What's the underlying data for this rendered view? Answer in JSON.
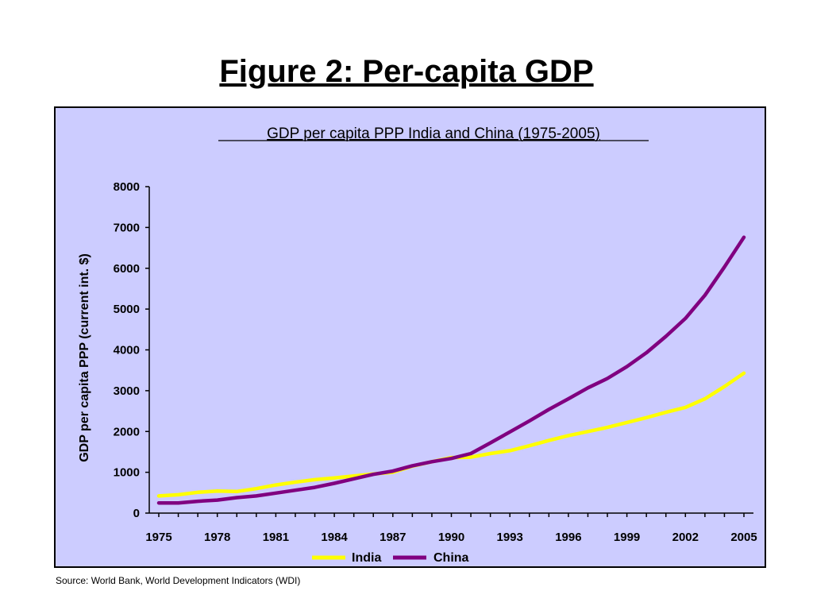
{
  "slide": {
    "title": "Figure 2: Per-capita GDP",
    "source": "Source: World Bank, World Development Indicators (WDI)"
  },
  "chart_data": {
    "type": "line",
    "title": "GDP per capita PPP India and China (1975-2005)",
    "xlabel": "",
    "ylabel": "GDP per capita PPP (current int. $)",
    "ylim": [
      0,
      8000
    ],
    "yticks": [
      0,
      1000,
      2000,
      3000,
      4000,
      5000,
      6000,
      7000,
      8000
    ],
    "xlim": [
      1975,
      2005
    ],
    "xticks": [
      1975,
      1978,
      1981,
      1984,
      1987,
      1990,
      1993,
      1996,
      1999,
      2002,
      2005
    ],
    "grid": false,
    "legend_position": "bottom",
    "background": "#ccccff",
    "x": [
      1975,
      1976,
      1977,
      1978,
      1979,
      1980,
      1981,
      1982,
      1983,
      1984,
      1985,
      1986,
      1987,
      1988,
      1989,
      1990,
      1991,
      1992,
      1993,
      1994,
      1995,
      1996,
      1997,
      1998,
      1999,
      2000,
      2001,
      2002,
      2003,
      2004,
      2005
    ],
    "series": [
      {
        "name": "India",
        "color": "#ffff00",
        "values": [
          420,
          450,
          510,
          540,
          530,
          600,
          690,
          760,
          820,
          860,
          910,
          960,
          1000,
          1150,
          1260,
          1360,
          1370,
          1460,
          1530,
          1650,
          1780,
          1900,
          2000,
          2100,
          2220,
          2340,
          2470,
          2590,
          2800,
          3100,
          3430
        ]
      },
      {
        "name": "China",
        "color": "#800080",
        "values": [
          250,
          250,
          290,
          320,
          380,
          420,
          490,
          560,
          630,
          730,
          840,
          950,
          1030,
          1160,
          1260,
          1340,
          1460,
          1720,
          1990,
          2260,
          2540,
          2800,
          3070,
          3300,
          3590,
          3930,
          4330,
          4770,
          5340,
          6030,
          6760
        ]
      }
    ]
  }
}
